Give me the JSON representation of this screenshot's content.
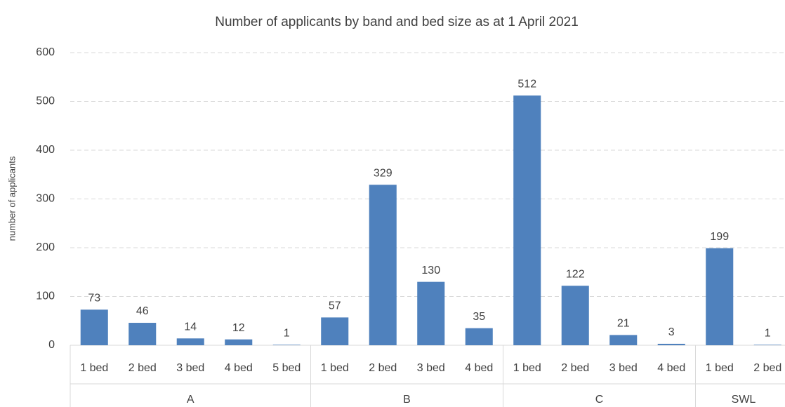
{
  "chart_data": {
    "type": "bar",
    "title": "Number of applicants by band and bed size as at 1 April 2021",
    "y_label": "number of applicants",
    "color": "#4f81bd",
    "ylim": [
      0,
      600
    ],
    "yticks": [
      0,
      100,
      200,
      300,
      400,
      500,
      600
    ],
    "grid": true,
    "groups": [
      {
        "name": "A",
        "categories": [
          "1 bed",
          "2 bed",
          "3 bed",
          "4 bed",
          "5 bed"
        ],
        "values": [
          73,
          46,
          14,
          12,
          1
        ]
      },
      {
        "name": "B",
        "categories": [
          "1 bed",
          "2 bed",
          "3 bed",
          "4 bed"
        ],
        "values": [
          57,
          329,
          130,
          35
        ]
      },
      {
        "name": "C",
        "categories": [
          "1 bed",
          "2 bed",
          "3 bed",
          "4 bed"
        ],
        "values": [
          512,
          122,
          21,
          3
        ]
      },
      {
        "name": "SWL",
        "categories": [
          "1 bed",
          "2 bed"
        ],
        "values": [
          199,
          1
        ]
      }
    ]
  }
}
